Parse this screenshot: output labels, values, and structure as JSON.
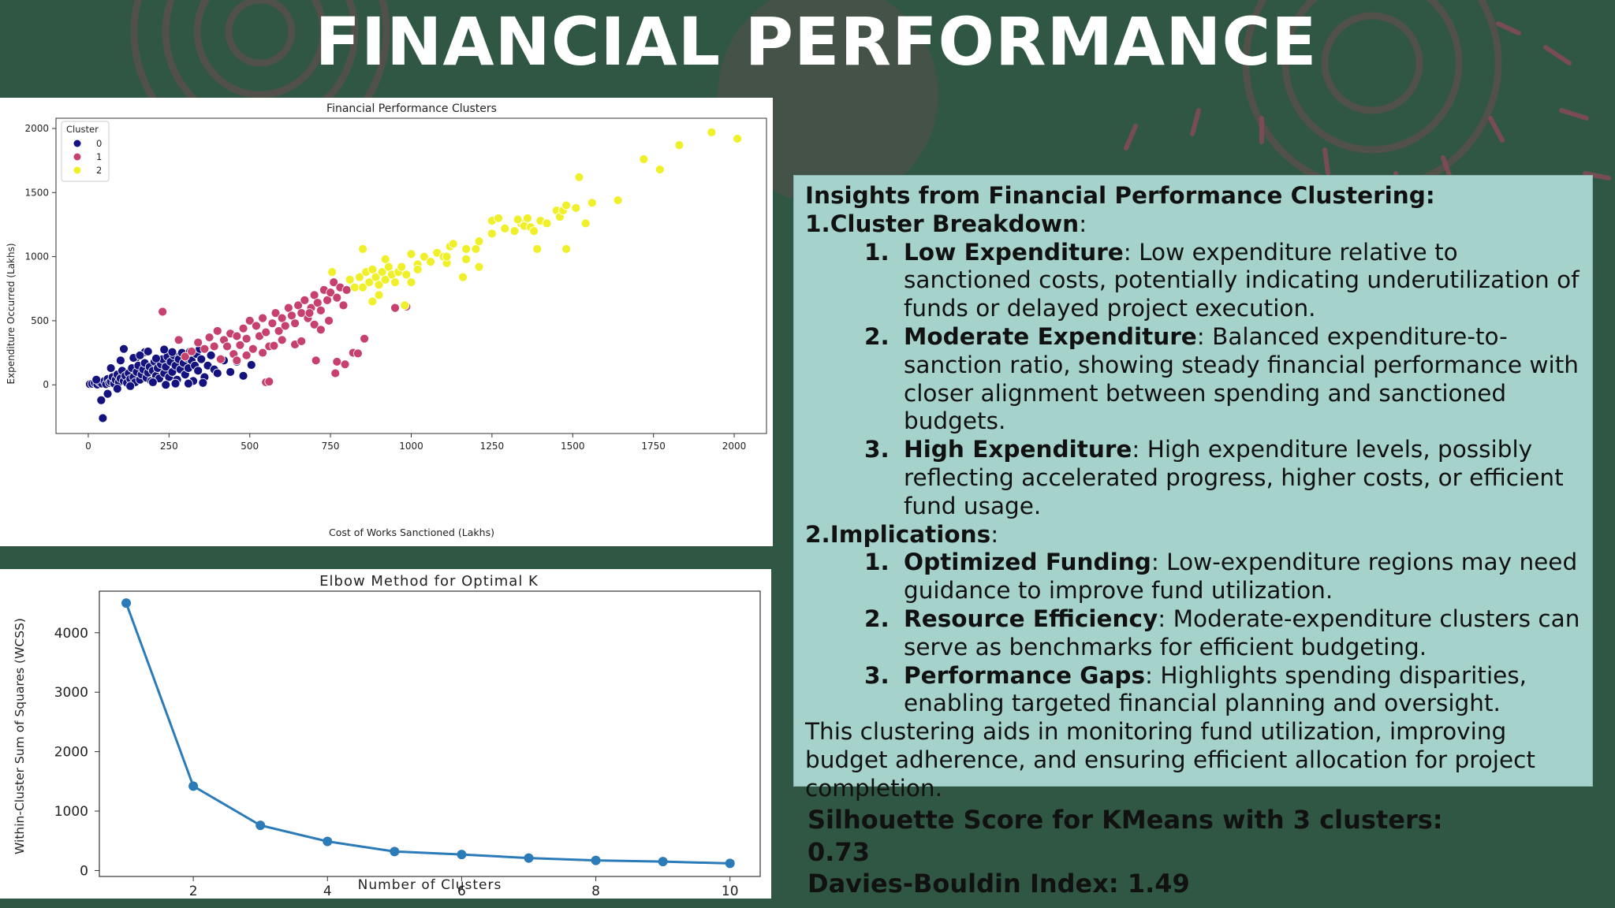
{
  "slide": {
    "title": "FINANCIAL PERFORMANCE",
    "background_color": "#2f5743",
    "accent_color": "#8a4a57"
  },
  "chart_data": [
    {
      "type": "scatter",
      "title": "Financial Performance Clusters",
      "xlabel": "Cost of Works Sanctioned (Lakhs)",
      "ylabel": "Expenditure Occurred (Lakhs)",
      "xlim": [
        -100,
        2100
      ],
      "ylim": [
        -380,
        2080
      ],
      "xticks": [
        0,
        250,
        500,
        750,
        1000,
        1250,
        1500,
        1750,
        2000
      ],
      "yticks": [
        0,
        500,
        1000,
        1500,
        2000
      ],
      "legend": {
        "title": "Cluster",
        "placement": "top-left"
      },
      "grid": false,
      "series": [
        {
          "name": "0",
          "color": "#14127e",
          "points": [
            [
              5,
              5
            ],
            [
              12,
              8
            ],
            [
              20,
              15
            ],
            [
              28,
              2
            ],
            [
              35,
              20
            ],
            [
              42,
              10
            ],
            [
              50,
              30
            ],
            [
              55,
              5
            ],
            [
              60,
              45
            ],
            [
              65,
              15
            ],
            [
              70,
              25
            ],
            [
              75,
              60
            ],
            [
              80,
              10
            ],
            [
              85,
              40
            ],
            [
              90,
              80
            ],
            [
              95,
              20
            ],
            [
              100,
              50
            ],
            [
              105,
              110
            ],
            [
              110,
              30
            ],
            [
              115,
              70
            ],
            [
              120,
              15
            ],
            [
              125,
              90
            ],
            [
              130,
              45
            ],
            [
              135,
              130
            ],
            [
              140,
              60
            ],
            [
              145,
              20
            ],
            [
              150,
              100
            ],
            [
              155,
              150
            ],
            [
              160,
              40
            ],
            [
              165,
              80
            ],
            [
              170,
              120
            ],
            [
              175,
              170
            ],
            [
              180,
              55
            ],
            [
              185,
              95
            ],
            [
              190,
              140
            ],
            [
              195,
              30
            ],
            [
              200,
              110
            ],
            [
              205,
              180
            ],
            [
              210,
              70
            ],
            [
              215,
              130
            ],
            [
              220,
              50
            ],
            [
              225,
              160
            ],
            [
              230,
              200
            ],
            [
              235,
              90
            ],
            [
              240,
              140
            ],
            [
              245,
              220
            ],
            [
              250,
              60
            ],
            [
              255,
              180
            ],
            [
              260,
              100
            ],
            [
              265,
              230
            ],
            [
              270,
              150
            ],
            [
              275,
              40
            ],
            [
              280,
              200
            ],
            [
              285,
              120
            ],
            [
              290,
              250
            ],
            [
              295,
              170
            ],
            [
              300,
              80
            ],
            [
              305,
              210
            ],
            [
              310,
              130
            ],
            [
              315,
              260
            ],
            [
              320,
              190
            ],
            [
              325,
              30
            ],
            [
              330,
              150
            ],
            [
              335,
              240
            ],
            [
              340,
              110
            ],
            [
              345,
              280
            ],
            [
              350,
              200
            ],
            [
              360,
              60
            ],
            [
              370,
              150
            ],
            [
              380,
              230
            ],
            [
              390,
              120
            ],
            [
              400,
              90
            ],
            [
              420,
              190
            ],
            [
              440,
              100
            ],
            [
              460,
              180
            ],
            [
              480,
              70
            ],
            [
              505,
              155
            ],
            [
              110,
              280
            ],
            [
              90,
              -30
            ],
            [
              60,
              -70
            ],
            [
              40,
              -120
            ],
            [
              45,
              -260
            ],
            [
              130,
              -10
            ],
            [
              150,
              215
            ],
            [
              175,
              255
            ],
            [
              210,
              205
            ],
            [
              235,
              275
            ],
            [
              260,
              255
            ],
            [
              200,
              20
            ],
            [
              240,
              0
            ],
            [
              270,
              10
            ],
            [
              310,
              10
            ],
            [
              355,
              15
            ],
            [
              25,
              40
            ],
            [
              70,
              130
            ],
            [
              100,
              190
            ],
            [
              140,
              210
            ],
            [
              160,
              230
            ],
            [
              185,
              260
            ]
          ]
        },
        {
          "name": "1",
          "color": "#c7416f",
          "points": [
            [
              230,
              570
            ],
            [
              280,
              350
            ],
            [
              300,
              220
            ],
            [
              320,
              260
            ],
            [
              340,
              330
            ],
            [
              360,
              280
            ],
            [
              375,
              370
            ],
            [
              390,
              300
            ],
            [
              400,
              420
            ],
            [
              410,
              200
            ],
            [
              420,
              350
            ],
            [
              430,
              300
            ],
            [
              440,
              400
            ],
            [
              450,
              240
            ],
            [
              460,
              380
            ],
            [
              470,
              310
            ],
            [
              480,
              440
            ],
            [
              490,
              360
            ],
            [
              500,
              500
            ],
            [
              510,
              280
            ],
            [
              520,
              460
            ],
            [
              530,
              380
            ],
            [
              540,
              520
            ],
            [
              550,
              410
            ],
            [
              560,
              300
            ],
            [
              570,
              480
            ],
            [
              580,
              560
            ],
            [
              590,
              420
            ],
            [
              600,
              520
            ],
            [
              610,
              460
            ],
            [
              620,
              600
            ],
            [
              630,
              540
            ],
            [
              640,
              480
            ],
            [
              650,
              620
            ],
            [
              660,
              560
            ],
            [
              670,
              660
            ],
            [
              680,
              520
            ],
            [
              690,
              600
            ],
            [
              700,
              700
            ],
            [
              710,
              640
            ],
            [
              720,
              580
            ],
            [
              730,
              740
            ],
            [
              740,
              660
            ],
            [
              750,
              720
            ],
            [
              760,
              800
            ],
            [
              770,
              680
            ],
            [
              780,
              760
            ],
            [
              790,
              620
            ],
            [
              800,
              740
            ],
            [
              600,
              350
            ],
            [
              540,
              250
            ],
            [
              490,
              230
            ],
            [
              460,
              190
            ],
            [
              550,
              20
            ],
            [
              560,
              25
            ],
            [
              705,
              190
            ],
            [
              765,
              90
            ],
            [
              770,
              180
            ],
            [
              795,
              160
            ],
            [
              820,
              250
            ],
            [
              835,
              245
            ],
            [
              855,
              360
            ],
            [
              950,
              600
            ],
            [
              985,
              610
            ],
            [
              575,
              305
            ],
            [
              640,
              315
            ],
            [
              660,
              340
            ],
            [
              685,
              560
            ],
            [
              700,
              470
            ],
            [
              720,
              430
            ],
            [
              745,
              500
            ]
          ]
        },
        {
          "name": "2",
          "color": "#f0f02a",
          "points": [
            [
              755,
              880
            ],
            [
              810,
              820
            ],
            [
              825,
              760
            ],
            [
              840,
              840
            ],
            [
              850,
              760
            ],
            [
              860,
              880
            ],
            [
              870,
              800
            ],
            [
              880,
              900
            ],
            [
              890,
              840
            ],
            [
              900,
              780
            ],
            [
              910,
              880
            ],
            [
              920,
              820
            ],
            [
              930,
              920
            ],
            [
              940,
              860
            ],
            [
              950,
              800
            ],
            [
              960,
              880
            ],
            [
              850,
              1060
            ],
            [
              920,
              980
            ],
            [
              970,
              920
            ],
            [
              985,
              860
            ],
            [
              1000,
              1020
            ],
            [
              1020,
              940
            ],
            [
              1040,
              1000
            ],
            [
              1060,
              960
            ],
            [
              1080,
              1030
            ],
            [
              1100,
              1000
            ],
            [
              1110,
              950
            ],
            [
              1120,
              1080
            ],
            [
              1130,
              1100
            ],
            [
              1170,
              980
            ],
            [
              1200,
              1060
            ],
            [
              1210,
              1120
            ],
            [
              1250,
              1280
            ],
            [
              1270,
              1300
            ],
            [
              1290,
              1220
            ],
            [
              1320,
              1200
            ],
            [
              1340,
              1260
            ],
            [
              1350,
              1240
            ],
            [
              1360,
              1300
            ],
            [
              1370,
              1230
            ],
            [
              1380,
              1200
            ],
            [
              1400,
              1280
            ],
            [
              1420,
              1260
            ],
            [
              1450,
              1360
            ],
            [
              1460,
              1310
            ],
            [
              1470,
              1360
            ],
            [
              1480,
              1400
            ],
            [
              1510,
              1380
            ],
            [
              1540,
              1260
            ],
            [
              1560,
              1420
            ],
            [
              1390,
              1060
            ],
            [
              1210,
              920
            ],
            [
              1160,
              840
            ],
            [
              1000,
              800
            ],
            [
              1020,
              900
            ],
            [
              900,
              700
            ],
            [
              880,
              650
            ],
            [
              980,
              620
            ],
            [
              1480,
              1060
            ],
            [
              1520,
              1620
            ],
            [
              1720,
              1760
            ],
            [
              1770,
              1680
            ],
            [
              1830,
              1870
            ],
            [
              1930,
              1970
            ],
            [
              2010,
              1920
            ],
            [
              1640,
              1440
            ],
            [
              1250,
              1180
            ],
            [
              1330,
              1290
            ],
            [
              1110,
              1000
            ],
            [
              1170,
              1060
            ]
          ]
        }
      ]
    },
    {
      "type": "line",
      "title": "Elbow Method for Optimal K",
      "xlabel": "Number of Clusters",
      "ylabel": "Within-Cluster Sum of Squares (WCSS)",
      "xlim": [
        0.6,
        10.45
      ],
      "ylim": [
        -100,
        4700
      ],
      "xticks": [
        2,
        4,
        6,
        8,
        10
      ],
      "yticks": [
        0,
        1000,
        2000,
        3000,
        4000
      ],
      "grid": false,
      "color": "#2b7bb9",
      "x": [
        1,
        2,
        3,
        4,
        5,
        6,
        7,
        8,
        9,
        10
      ],
      "y": [
        4500,
        1420,
        760,
        490,
        320,
        270,
        210,
        170,
        150,
        120
      ]
    }
  ],
  "insights": {
    "heading": "Insights from Financial Performance Clustering:",
    "section1_title": "1.Cluster Breakdown",
    "section1_suffix": ":",
    "section1_items": [
      {
        "num": "1.",
        "term": "Low Expenditure",
        "text": ": Low expenditure relative to sanctioned costs, potentially indicating underutilization of funds or delayed project execution."
      },
      {
        "num": "2.",
        "term": "Moderate Expenditure",
        "text": ": Balanced expenditure-to-sanction ratio, showing steady financial performance with closer alignment between spending and sanctioned budgets."
      },
      {
        "num": "3.",
        "term": "High Expenditure",
        "text": ": High expenditure levels, possibly reflecting accelerated progress, higher costs, or efficient fund usage."
      }
    ],
    "section2_title": "2.Implications",
    "section2_suffix": ":",
    "section2_items": [
      {
        "num": "1.",
        "term": "Optimized Funding",
        "text": ": Low-expenditure regions may need guidance to improve fund utilization."
      },
      {
        "num": "2.",
        "term": "Resource Efficiency",
        "text": ": Moderate-expenditure clusters can serve as benchmarks for efficient budgeting."
      },
      {
        "num": "3.",
        "term": "Performance Gaps",
        "text": ": Highlights spending disparities, enabling targeted financial planning and oversight."
      }
    ],
    "conclusion": "This clustering aids in monitoring fund utilization, improving budget adherence, and ensuring efficient allocation for project completion."
  },
  "metrics": {
    "silhouette_label": "Silhouette Score for KMeans with 3 clusters:",
    "silhouette_value": "0.73",
    "davies_bouldin": "Davies-Bouldin Index: 1.49"
  }
}
